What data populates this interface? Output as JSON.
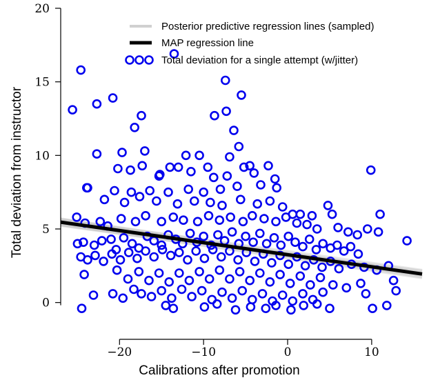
{
  "chart_data": {
    "type": "scatter",
    "xlabel": "Calibrations after promotion",
    "ylabel": "Total deviation from instructor",
    "xlim": [
      -27,
      16
    ],
    "ylim": [
      -1,
      20
    ],
    "xticks": [
      -20,
      -10,
      0,
      10
    ],
    "xtick_labels": [
      "−20",
      "−10",
      "0",
      "10"
    ],
    "yticks": [
      0,
      5,
      10,
      15,
      20
    ],
    "ytick_labels": [
      "0",
      "5",
      "10",
      "15",
      "20"
    ],
    "grid": false,
    "legend": {
      "placement": "top-right",
      "entries": [
        "Posterior predictive regression lines (sampled)",
        "MAP regression line",
        "Total deviation for a single attempt (w/jitter)"
      ]
    },
    "colors": {
      "points": "#0000ee",
      "map_line": "#000000",
      "posterior_lines": "#bbbbbb"
    },
    "map_line": {
      "intercept": 3.25,
      "slope": -0.082
    },
    "posterior_lines": [
      {
        "intercept": 3.15,
        "slope": -0.078
      },
      {
        "intercept": 3.35,
        "slope": -0.086
      },
      {
        "intercept": 3.2,
        "slope": -0.09
      },
      {
        "intercept": 3.3,
        "slope": -0.074
      },
      {
        "intercept": 3.05,
        "slope": -0.084
      },
      {
        "intercept": 3.45,
        "slope": -0.08
      }
    ],
    "points": [
      [
        -25.6,
        13.1
      ],
      [
        -24.6,
        15.8
      ],
      [
        -22.7,
        13.5
      ],
      [
        -20.8,
        13.9
      ],
      [
        -13.5,
        16.9
      ],
      [
        -7.4,
        15.1
      ],
      [
        -5.5,
        14.1
      ],
      [
        -17.4,
        12.7
      ],
      [
        -18.2,
        11.9
      ],
      [
        -8.7,
        12.7
      ],
      [
        -7.3,
        13.0
      ],
      [
        -6.4,
        11.7
      ],
      [
        -5.8,
        10.6
      ],
      [
        -22.7,
        10.1
      ],
      [
        -19.7,
        10.2
      ],
      [
        -17.0,
        10.3
      ],
      [
        -12.1,
        10.0
      ],
      [
        -10.5,
        10.0
      ],
      [
        -6.9,
        9.9
      ],
      [
        9.9,
        9.0
      ],
      [
        -23.9,
        7.8
      ],
      [
        -23.8,
        7.8
      ],
      [
        -15.3,
        8.6
      ],
      [
        -15.2,
        8.7
      ],
      [
        -11.5,
        8.9
      ],
      [
        -9.5,
        9.2
      ],
      [
        -5.2,
        9.2
      ],
      [
        -4.5,
        9.3
      ],
      [
        -2.3,
        9.3
      ],
      [
        -20.2,
        9.1
      ],
      [
        -18.7,
        9.0
      ],
      [
        -17.3,
        9.3
      ],
      [
        -14.0,
        9.2
      ],
      [
        -13.0,
        9.2
      ],
      [
        -8.8,
        8.5
      ],
      [
        -7.2,
        8.6
      ],
      [
        -4.0,
        8.8
      ],
      [
        -1.5,
        8.4
      ],
      [
        -1.3,
        7.8
      ],
      [
        -3.2,
        8.0
      ],
      [
        -6.0,
        7.9
      ],
      [
        -8.0,
        7.7
      ],
      [
        -10.0,
        7.5
      ],
      [
        -11.8,
        7.7
      ],
      [
        -14.2,
        7.5
      ],
      [
        -16.4,
        7.6
      ],
      [
        -18.6,
        7.5
      ],
      [
        -20.6,
        7.6
      ],
      [
        -21.8,
        7.0
      ],
      [
        -19.4,
        6.8
      ],
      [
        -17.6,
        7.2
      ],
      [
        -15.6,
        6.9
      ],
      [
        -13.1,
        6.7
      ],
      [
        -11.1,
        6.9
      ],
      [
        -9.2,
        6.8
      ],
      [
        -7.8,
        6.6
      ],
      [
        -5.6,
        7.0
      ],
      [
        -3.6,
        6.7
      ],
      [
        -2.1,
        6.9
      ],
      [
        -0.6,
        6.5
      ],
      [
        0.6,
        6.0
      ],
      [
        1.5,
        6.0
      ],
      [
        2.9,
        5.9
      ],
      [
        4.8,
        6.6
      ],
      [
        5.3,
        6.0
      ],
      [
        6.0,
        5.1
      ],
      [
        7.2,
        4.8
      ],
      [
        8.3,
        4.6
      ],
      [
        9.5,
        5.0
      ],
      [
        11.0,
        6.0
      ],
      [
        10.8,
        4.8
      ],
      [
        14.2,
        4.2
      ],
      [
        -25.1,
        5.8
      ],
      [
        -24.1,
        5.4
      ],
      [
        -22.3,
        5.5
      ],
      [
        -21.4,
        5.2
      ],
      [
        -19.8,
        5.7
      ],
      [
        -18.1,
        5.5
      ],
      [
        -16.9,
        5.9
      ],
      [
        -15.0,
        5.5
      ],
      [
        -13.6,
        5.8
      ],
      [
        -12.4,
        5.6
      ],
      [
        -10.7,
        5.5
      ],
      [
        -9.4,
        5.9
      ],
      [
        -8.1,
        5.6
      ],
      [
        -6.8,
        5.8
      ],
      [
        -5.3,
        5.5
      ],
      [
        -4.2,
        5.9
      ],
      [
        -2.8,
        5.7
      ],
      [
        -1.4,
        5.5
      ],
      [
        -0.2,
        5.8
      ],
      [
        1.1,
        5.4
      ],
      [
        2.3,
        5.3
      ],
      [
        3.5,
        5.0
      ],
      [
        -25.0,
        4.0
      ],
      [
        -24.3,
        4.1
      ],
      [
        -23.0,
        3.9
      ],
      [
        -22.1,
        4.2
      ],
      [
        -21.0,
        4.3
      ],
      [
        -20.4,
        3.6
      ],
      [
        -19.5,
        4.4
      ],
      [
        -18.5,
        4.0
      ],
      [
        -17.7,
        3.7
      ],
      [
        -16.7,
        4.5
      ],
      [
        -15.9,
        4.2
      ],
      [
        -15.0,
        3.9
      ],
      [
        -14.2,
        4.6
      ],
      [
        -13.3,
        4.3
      ],
      [
        -12.5,
        4.0
      ],
      [
        -11.6,
        4.7
      ],
      [
        -10.8,
        4.1
      ],
      [
        -10.0,
        4.5
      ],
      [
        -9.1,
        3.9
      ],
      [
        -8.3,
        4.6
      ],
      [
        -7.5,
        4.2
      ],
      [
        -6.6,
        4.8
      ],
      [
        -5.8,
        4.0
      ],
      [
        -5.0,
        4.5
      ],
      [
        -4.1,
        4.1
      ],
      [
        -3.3,
        4.7
      ],
      [
        -2.5,
        4.0
      ],
      [
        -1.6,
        4.4
      ],
      [
        -0.8,
        3.9
      ],
      [
        0.1,
        4.5
      ],
      [
        0.9,
        4.1
      ],
      [
        1.8,
        3.8
      ],
      [
        2.6,
        4.3
      ],
      [
        3.4,
        3.6
      ],
      [
        4.2,
        4.0
      ],
      [
        5.1,
        3.7
      ],
      [
        5.9,
        3.9
      ],
      [
        6.7,
        3.5
      ],
      [
        7.5,
        3.8
      ],
      [
        8.4,
        3.3
      ],
      [
        -24.6,
        3.1
      ],
      [
        -23.8,
        2.9
      ],
      [
        -22.9,
        3.2
      ],
      [
        -21.9,
        2.8
      ],
      [
        -20.9,
        3.3
      ],
      [
        -19.9,
        2.9
      ],
      [
        -18.9,
        3.4
      ],
      [
        -17.9,
        3.0
      ],
      [
        -16.9,
        3.5
      ],
      [
        -15.9,
        3.1
      ],
      [
        -14.9,
        3.6
      ],
      [
        -13.9,
        3.2
      ],
      [
        -12.9,
        3.4
      ],
      [
        -11.9,
        2.9
      ],
      [
        -10.9,
        3.5
      ],
      [
        -9.9,
        3.0
      ],
      [
        -8.9,
        3.6
      ],
      [
        -7.9,
        3.1
      ],
      [
        -6.9,
        3.5
      ],
      [
        -5.9,
        2.9
      ],
      [
        -4.9,
        3.4
      ],
      [
        -3.9,
        2.8
      ],
      [
        -2.9,
        3.3
      ],
      [
        -1.9,
        2.7
      ],
      [
        -0.9,
        3.2
      ],
      [
        0.1,
        2.6
      ],
      [
        1.1,
        3.1
      ],
      [
        2.1,
        2.5
      ],
      [
        3.1,
        2.9
      ],
      [
        4.1,
        2.4
      ],
      [
        5.1,
        2.8
      ],
      [
        6.1,
        2.3
      ],
      [
        7.6,
        2.6
      ],
      [
        9.1,
        2.4
      ],
      [
        10.6,
        2.2
      ],
      [
        12.0,
        2.5
      ],
      [
        -24.2,
        1.9
      ],
      [
        -20.3,
        2.2
      ],
      [
        -19.0,
        1.6
      ],
      [
        -17.7,
        2.1
      ],
      [
        -16.5,
        1.5
      ],
      [
        -15.3,
        2.0
      ],
      [
        -14.1,
        1.4
      ],
      [
        -12.9,
        2.0
      ],
      [
        -11.7,
        1.5
      ],
      [
        -10.5,
        2.1
      ],
      [
        -9.3,
        1.6
      ],
      [
        -8.1,
        2.2
      ],
      [
        -6.9,
        1.6
      ],
      [
        -5.7,
        2.1
      ],
      [
        -4.5,
        1.5
      ],
      [
        -3.3,
        2.0
      ],
      [
        -2.1,
        1.4
      ],
      [
        -0.9,
        1.9
      ],
      [
        0.3,
        1.3
      ],
      [
        1.5,
        1.8
      ],
      [
        2.7,
        1.2
      ],
      [
        3.9,
        1.7
      ],
      [
        5.4,
        1.2
      ],
      [
        7.0,
        1.0
      ],
      [
        8.7,
        1.3
      ],
      [
        12.6,
        1.5
      ],
      [
        -23.1,
        0.5
      ],
      [
        -20.8,
        0.6
      ],
      [
        -19.6,
        0.3
      ],
      [
        -18.3,
        0.9
      ],
      [
        -17.4,
        0.6
      ],
      [
        -16.2,
        0.4
      ],
      [
        -15.0,
        0.8
      ],
      [
        -13.8,
        0.3
      ],
      [
        -12.6,
        0.9
      ],
      [
        -11.4,
        0.4
      ],
      [
        -10.2,
        0.8
      ],
      [
        -9.0,
        0.2
      ],
      [
        -7.8,
        0.7
      ],
      [
        -6.6,
        0.3
      ],
      [
        -5.4,
        0.8
      ],
      [
        -4.2,
        0.2
      ],
      [
        -3.0,
        0.6
      ],
      [
        -1.8,
        0.1
      ],
      [
        -0.6,
        0.5
      ],
      [
        0.6,
        0.1
      ],
      [
        1.8,
        0.6
      ],
      [
        3.0,
        0.2
      ],
      [
        4.2,
        0.7
      ],
      [
        9.3,
        0.6
      ],
      [
        12.9,
        0.8
      ],
      [
        -24.5,
        -0.4
      ],
      [
        -14.5,
        -0.2
      ],
      [
        -13.6,
        -0.4
      ],
      [
        -9.9,
        -0.3
      ],
      [
        -8.4,
        -0.1
      ],
      [
        -6.2,
        -0.5
      ],
      [
        -4.4,
        -0.3
      ],
      [
        -2.6,
        -0.4
      ],
      [
        -1.4,
        -0.2
      ],
      [
        0.4,
        -0.5
      ],
      [
        1.9,
        -0.2
      ],
      [
        3.5,
        -0.1
      ],
      [
        5.0,
        -0.4
      ],
      [
        10.1,
        -0.4
      ],
      [
        11.8,
        -0.2
      ]
    ]
  }
}
